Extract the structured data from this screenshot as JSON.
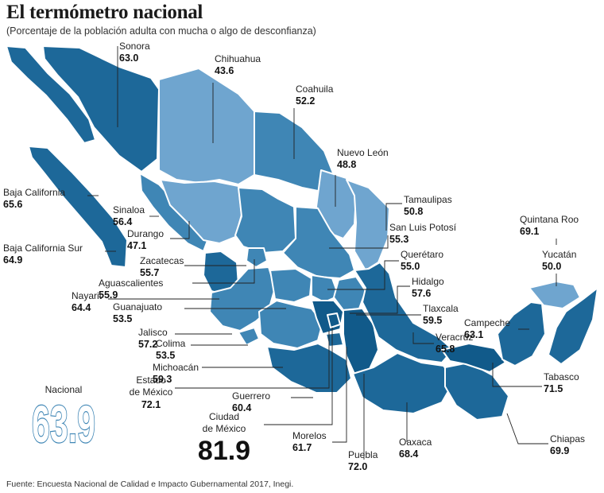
{
  "title": "El termómetro nacional",
  "subtitle": "(Porcentaje de la población adulta con mucha o algo de desconfianza)",
  "source": "Fuente: Encuesta Nacional de Calidad e Impacto Gubernamental 2017, Inegi.",
  "colors": {
    "light": "#6fa5cf",
    "mid": "#3f86b5",
    "dark": "#1d6899",
    "darkest": "#115a8a",
    "border": "#ffffff"
  },
  "chart_data": {
    "type": "choropleth-map",
    "title": "El termómetro nacional",
    "subtitle": "(Porcentaje de la población adulta con mucha o algo de desconfianza)",
    "unit": "%",
    "national": {
      "label": "Nacional",
      "value": "63.9"
    },
    "states": [
      {
        "name": "Sonora",
        "value": "63.0"
      },
      {
        "name": "Chihuahua",
        "value": "43.6"
      },
      {
        "name": "Coahuila",
        "value": "52.2"
      },
      {
        "name": "Nuevo León",
        "value": "48.8"
      },
      {
        "name": "Tamaulipas",
        "value": "50.8"
      },
      {
        "name": "Baja California",
        "value": "65.6"
      },
      {
        "name": "Baja California Sur",
        "value": "64.9"
      },
      {
        "name": "Sinaloa",
        "value": "56.4"
      },
      {
        "name": "Durango",
        "value": "47.1"
      },
      {
        "name": "Zacatecas",
        "value": "55.7"
      },
      {
        "name": "San Luis Potosí",
        "value": "55.3"
      },
      {
        "name": "Querétaro",
        "value": "55.0"
      },
      {
        "name": "Aguascalientes",
        "value": "55.9"
      },
      {
        "name": "Nayarit",
        "value": "64.4"
      },
      {
        "name": "Guanajuato",
        "value": "53.5"
      },
      {
        "name": "Hidalgo",
        "value": "57.6"
      },
      {
        "name": "Jalisco",
        "value": "57.2"
      },
      {
        "name": "Tlaxcala",
        "value": "59.5"
      },
      {
        "name": "Colima",
        "value": "53.5"
      },
      {
        "name": "Veracruz",
        "value": "65.8"
      },
      {
        "name": "Michoacán",
        "value": "59.3"
      },
      {
        "name": "Estado de México",
        "value": "72.1"
      },
      {
        "name": "Guerrero",
        "value": "60.4"
      },
      {
        "name": "Ciudad de México",
        "value": "81.9"
      },
      {
        "name": "Morelos",
        "value": "61.7"
      },
      {
        "name": "Puebla",
        "value": "72.0"
      },
      {
        "name": "Oaxaca",
        "value": "68.4"
      },
      {
        "name": "Quintana Roo",
        "value": "69.1"
      },
      {
        "name": "Yucatán",
        "value": "50.0"
      },
      {
        "name": "Campeche",
        "value": "63.1"
      },
      {
        "name": "Tabasco",
        "value": "71.5"
      },
      {
        "name": "Chiapas",
        "value": "69.9"
      }
    ]
  }
}
